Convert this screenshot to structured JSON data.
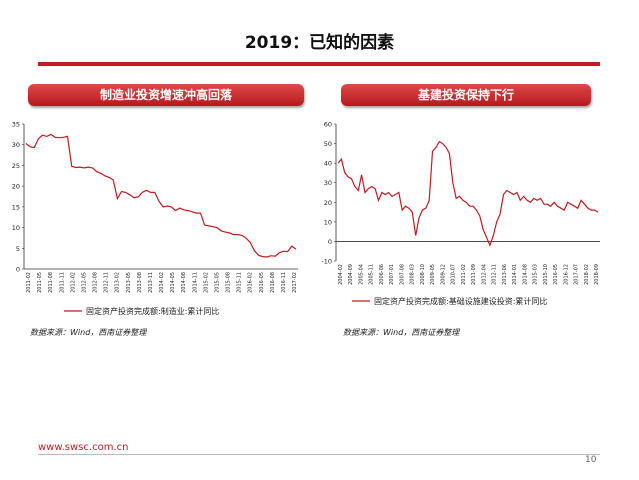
{
  "slide": {
    "title": "2019：已知的因素",
    "footer_url": "www.swsc.com.cn",
    "page_number": "10",
    "accent_color": "#c51a1f"
  },
  "left_panel": {
    "heading": "制造业投资增速冲高回落",
    "source": "数据来源：Wind，西南证券整理"
  },
  "right_panel": {
    "heading": "基建投资保持下行",
    "source": "数据来源：Wind，西南证券整理"
  },
  "chart_data": [
    {
      "type": "line",
      "ylim": [
        0,
        35
      ],
      "yticks": [
        0,
        5,
        10,
        15,
        20,
        25,
        30,
        35
      ],
      "x_tick_labels": [
        "2011-02",
        "2011-05",
        "2011-08",
        "2011-11",
        "2012-02",
        "2012-05",
        "2012-08",
        "2012-11",
        "2013-02",
        "2013-05",
        "2013-08",
        "2013-11",
        "2014-02",
        "2014-05",
        "2014-08",
        "2014-11",
        "2015-02",
        "2015-05",
        "2015-08",
        "2015-11",
        "2016-02",
        "2016-05",
        "2016-08",
        "2016-11",
        "2017-02"
      ],
      "series": [
        {
          "name": "固定资产投资完成额:制造业:累计同比",
          "color": "#c51a1f",
          "values": [
            30.3,
            29.5,
            29.3,
            31.5,
            32.3,
            32.0,
            32.5,
            31.8,
            31.7,
            31.8,
            32.0,
            24.8,
            24.5,
            24.6,
            24.4,
            24.6,
            24.4,
            23.5,
            23.1,
            22.5,
            22.1,
            21.5,
            17.0,
            18.7,
            18.5,
            17.9,
            17.2,
            17.4,
            18.5,
            19.0,
            18.5,
            18.5,
            16.4,
            15.0,
            15.2,
            15.0,
            14.1,
            14.7,
            14.3,
            14.1,
            13.8,
            13.5,
            13.5,
            10.6,
            10.4,
            10.2,
            10.0,
            9.2,
            8.9,
            8.7,
            8.3,
            8.3,
            8.1,
            7.4,
            6.4,
            4.4,
            3.3,
            3.0,
            2.9,
            3.2,
            3.1,
            3.9,
            4.3,
            4.2,
            5.5,
            4.8
          ]
        }
      ]
    },
    {
      "type": "line",
      "ylim": [
        -10,
        60
      ],
      "yticks": [
        -10,
        0,
        10,
        20,
        30,
        40,
        50,
        60
      ],
      "x_tick_labels": [
        "2004-02",
        "2004-09",
        "2005-04",
        "2005-11",
        "2006-06",
        "2007-01",
        "2007-08",
        "2008-03",
        "2008-10",
        "2009-05",
        "2009-12",
        "2010-07",
        "2011-02",
        "2011-09",
        "2012-04",
        "2012-11",
        "2013-06",
        "2014-01",
        "2014-08",
        "2015-03",
        "2015-10",
        "2016-05",
        "2016-12",
        "2017-07",
        "2018-02",
        "2018-09"
      ],
      "series": [
        {
          "name": "固定资产投资完成额:基础设施建设投资:累计同比",
          "color": "#c51a1f",
          "values": [
            40,
            42,
            35,
            33,
            32,
            28,
            26,
            34,
            25,
            27,
            28,
            27,
            21,
            25,
            24,
            25,
            23,
            24,
            25,
            16,
            18,
            17,
            15,
            3,
            12,
            16,
            17,
            21,
            46,
            48,
            51,
            50,
            48,
            45,
            30,
            22,
            23,
            21,
            20,
            18,
            18,
            16,
            13,
            6,
            2,
            -2,
            3,
            10,
            14,
            24,
            26,
            25,
            24,
            25,
            21,
            23,
            21,
            20,
            22,
            21,
            22,
            19,
            19,
            18,
            20,
            18,
            17,
            16,
            20,
            19,
            18,
            17,
            21,
            19,
            17,
            16,
            16,
            15
          ]
        }
      ]
    }
  ]
}
